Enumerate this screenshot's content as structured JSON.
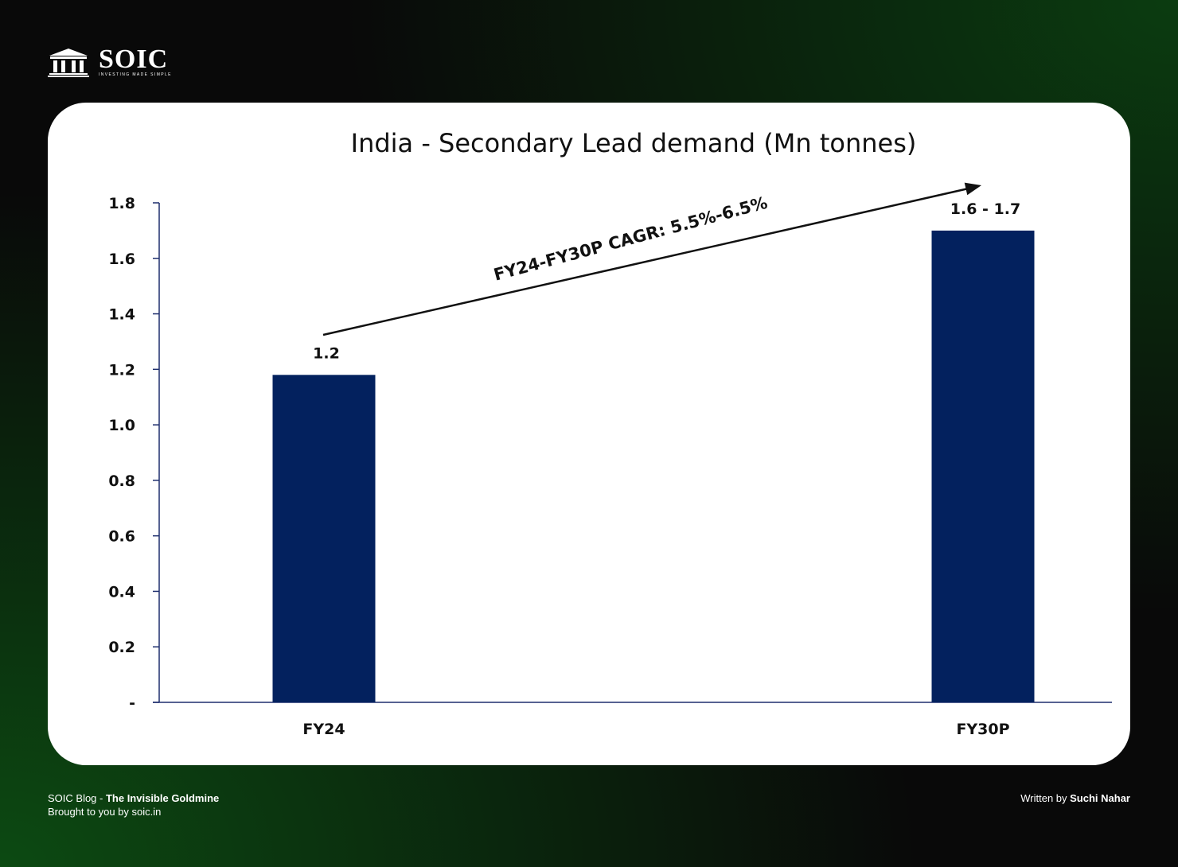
{
  "brand": {
    "name": "SOIC",
    "tagline": "INVESTING MADE SIMPLE",
    "mark_label": "SOIC"
  },
  "footer": {
    "blog_prefix": "SOIC Blog - ",
    "blog_title": "The Invisible Goldmine",
    "brought_by": "Brought to you by soic.in",
    "written_prefix": "Written by ",
    "author": "Suchi Nahar"
  },
  "colors": {
    "bar": "#03215e",
    "axis": "#1f2f6e",
    "text": "#111111"
  },
  "chart_data": {
    "type": "bar",
    "title": "India - Secondary Lead demand (Mn tonnes)",
    "categories": [
      "FY24",
      "FY30P"
    ],
    "values": [
      1.18,
      1.7
    ],
    "data_labels": [
      "1.2",
      "1.6 -  1.7"
    ],
    "ylim": [
      0,
      1.8
    ],
    "y_ticks": [
      0,
      0.2,
      0.4,
      0.6,
      0.8,
      1.0,
      1.2,
      1.4,
      1.6,
      1.8
    ],
    "y_tick_labels": [
      "-",
      "0.2",
      "0.4",
      "0.6",
      "0.8",
      "1.0",
      "1.2",
      "1.4",
      "1.6",
      "1.8"
    ],
    "xlabel": "",
    "ylabel": "",
    "grid": false,
    "annotation": {
      "text": "FY24-FY30P CAGR: 5.5%-6.5%",
      "from": "FY24",
      "to": "FY30P"
    }
  }
}
